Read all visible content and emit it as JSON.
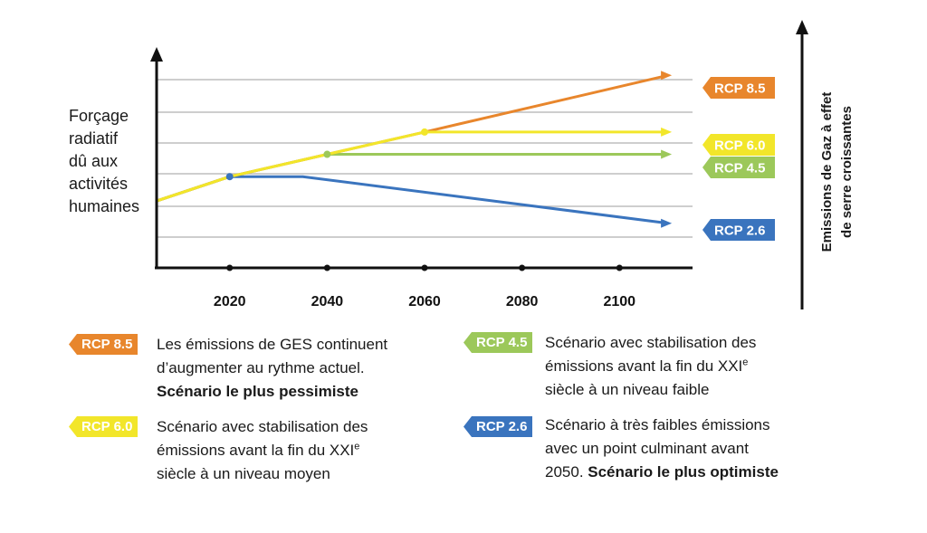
{
  "chart_data": {
    "type": "line",
    "x_ticks": [
      2020,
      2040,
      2060,
      2080,
      2100
    ],
    "xlim": [
      2005,
      2115
    ],
    "ylim": [
      0,
      10
    ],
    "ylabel_lines": [
      "Forçage",
      "radiatif",
      "dû aux",
      "activités",
      "humaines"
    ],
    "right_axis_label_lines": [
      "Emissions de Gaz à effet",
      "de serre croissantes"
    ],
    "grid": true,
    "series": [
      {
        "name": "RCP 8.5",
        "color": "#E8862C",
        "points": [
          [
            2005,
            3.3
          ],
          [
            2020,
            4.5
          ],
          [
            2060,
            6.7
          ],
          [
            2110,
            9.5
          ]
        ]
      },
      {
        "name": "RCP 6.0",
        "color": "#F2E62A",
        "points": [
          [
            2005,
            3.3
          ],
          [
            2020,
            4.5
          ],
          [
            2060,
            6.7
          ],
          [
            2110,
            6.7
          ]
        ]
      },
      {
        "name": "RCP 4.5",
        "color": "#9CC85A",
        "points": [
          [
            2005,
            3.3
          ],
          [
            2020,
            4.5
          ],
          [
            2040,
            5.6
          ],
          [
            2110,
            5.6
          ]
        ]
      },
      {
        "name": "RCP 2.6",
        "color": "#3A74BE",
        "points": [
          [
            2005,
            3.3
          ],
          [
            2020,
            4.5
          ],
          [
            2035,
            4.5
          ],
          [
            2110,
            2.2
          ]
        ]
      }
    ]
  },
  "legend": [
    {
      "tag": "RCP 8.5",
      "color": "#E8862C",
      "lines": [
        "Les émissions de GES continuent",
        "d’augmenter au rythme actuel."
      ],
      "bold": "Scénario le plus pessimiste"
    },
    {
      "tag": "RCP 6.0",
      "color": "#F2E62A",
      "lines": [
        "Scénario avec stabilisation des",
        "émissions avant la fin du XXI",
        "siècle à un niveau moyen"
      ],
      "sup": "e"
    },
    {
      "tag": "RCP 4.5",
      "color": "#9CC85A",
      "lines": [
        "Scénario avec stabilisation des",
        "émissions avant la fin du XXI",
        "siècle à un niveau faible"
      ],
      "sup": "e"
    },
    {
      "tag": "RCP 2.6",
      "color": "#3A74BE",
      "lines": [
        "Scénario à très faibles émissions",
        "avec un point culminant avant",
        "2050. "
      ],
      "bold": "Scénario le plus optimiste"
    }
  ]
}
